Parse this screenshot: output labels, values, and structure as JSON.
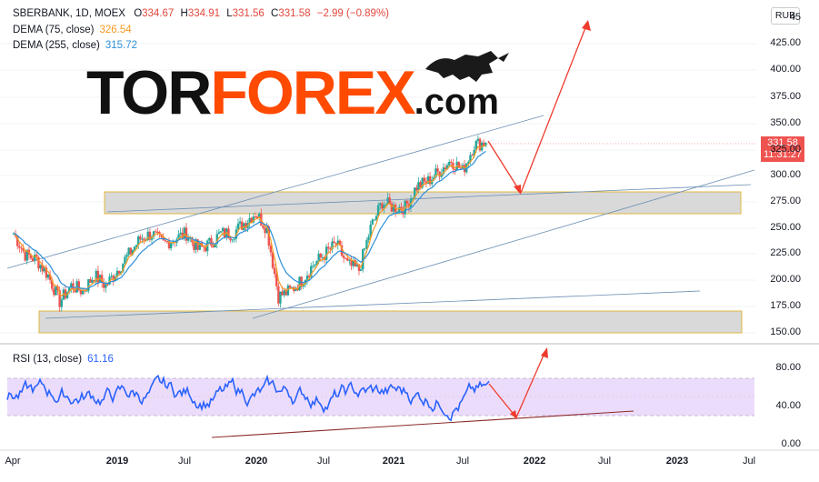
{
  "header": {
    "symbol": "SBERBANK, 1D, MOEX",
    "o_label": "O",
    "o": "334.67",
    "h_label": "H",
    "h": "334.91",
    "l_label": "L",
    "l": "331.56",
    "c_label": "C",
    "c": "331.58",
    "change": "−2.99 (−0.89%)",
    "dema75_label": "DEMA (75, close)",
    "dema75_value": "326.54",
    "dema75_color": "#f59a23",
    "dema255_label": "DEMA (255, close)",
    "dema255_value": "315.72",
    "dema255_color": "#2b8fd9",
    "currency": "RUB"
  },
  "price_tag": {
    "price": "331.58",
    "countdown": "11:31:27",
    "color": "#ef5350"
  },
  "logo": {
    "tor": "TOR",
    "forex": "FOREX",
    "com": ".com"
  },
  "y_axis": [
    "45",
    "425.00",
    "400.00",
    "375.00",
    "350.00",
    "325.00",
    "300.00",
    "275.00",
    "250.00",
    "225.00",
    "200.00",
    "175.00",
    "150.00"
  ],
  "rsi": {
    "label": "RSI (13, close)",
    "value": "61.16",
    "color": "#2962ff",
    "band_color": "#e9d8fb",
    "levels": [
      "80.00",
      "40.00",
      "0.00"
    ]
  },
  "x_axis": [
    {
      "label": "Apr",
      "bold": false
    },
    {
      "label": "2019",
      "bold": true
    },
    {
      "label": "Jul",
      "bold": false
    },
    {
      "label": "2020",
      "bold": true
    },
    {
      "label": "Jul",
      "bold": false
    },
    {
      "label": "2021",
      "bold": true
    },
    {
      "label": "Jul",
      "bold": false
    },
    {
      "label": "2022",
      "bold": true
    },
    {
      "label": "Jul",
      "bold": false
    },
    {
      "label": "2023",
      "bold": true
    },
    {
      "label": "Jul",
      "bold": false
    }
  ],
  "chart_data": {
    "type": "candlestick",
    "y_range": [
      140,
      460
    ],
    "rsi_range": [
      0,
      100
    ],
    "close_path": [
      [
        "2018-04",
        245
      ],
      [
        "2018-05",
        225
      ],
      [
        "2018-06",
        220
      ],
      [
        "2018-07",
        205
      ],
      [
        "2018-08",
        180
      ],
      [
        "2018-09",
        195
      ],
      [
        "2018-10",
        190
      ],
      [
        "2018-11",
        205
      ],
      [
        "2018-12",
        195
      ],
      [
        "2019-01",
        210
      ],
      [
        "2019-02",
        225
      ],
      [
        "2019-03",
        240
      ],
      [
        "2019-04",
        245
      ],
      [
        "2019-05",
        235
      ],
      [
        "2019-06",
        240
      ],
      [
        "2019-07",
        245
      ],
      [
        "2019-08",
        230
      ],
      [
        "2019-09",
        235
      ],
      [
        "2019-10",
        245
      ],
      [
        "2019-11",
        245
      ],
      [
        "2019-12",
        255
      ],
      [
        "2020-01",
        265
      ],
      [
        "2020-02",
        250
      ],
      [
        "2020-03",
        185
      ],
      [
        "2020-04",
        190
      ],
      [
        "2020-05",
        200
      ],
      [
        "2020-06",
        215
      ],
      [
        "2020-07",
        225
      ],
      [
        "2020-08",
        235
      ],
      [
        "2020-09",
        215
      ],
      [
        "2020-10",
        210
      ],
      [
        "2020-11",
        250
      ],
      [
        "2020-12",
        275
      ],
      [
        "2021-01",
        270
      ],
      [
        "2021-02",
        270
      ],
      [
        "2021-03",
        290
      ],
      [
        "2021-04",
        295
      ],
      [
        "2021-05",
        305
      ],
      [
        "2021-06",
        315
      ],
      [
        "2021-07",
        305
      ],
      [
        "2021-08",
        330
      ],
      [
        "2021-09",
        332
      ]
    ]
  }
}
